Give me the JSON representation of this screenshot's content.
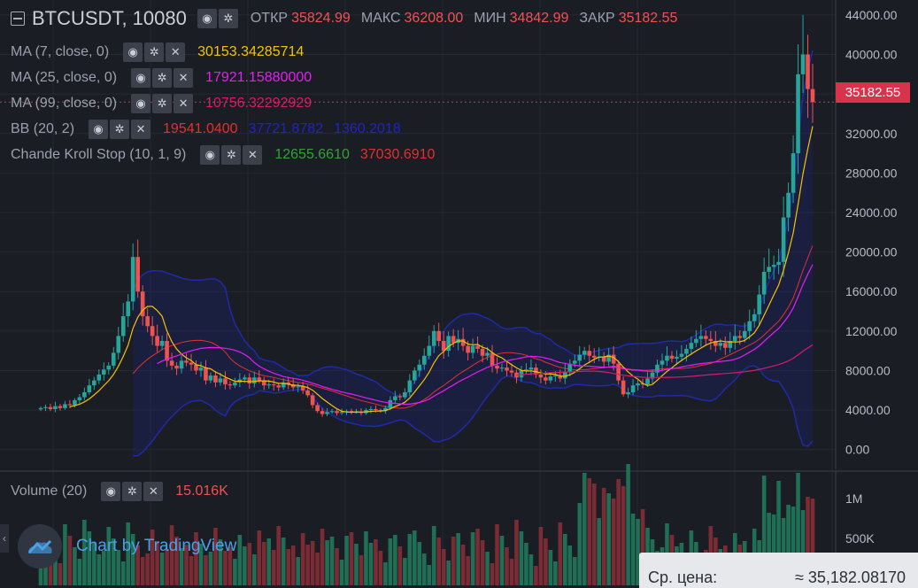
{
  "header": {
    "symbol": "BTCUSDT, 10080",
    "ohlc": [
      {
        "label": "ОТКР",
        "value": "35824.99"
      },
      {
        "label": "МАКС",
        "value": "36208.00"
      },
      {
        "label": "МИН",
        "value": "34842.99"
      },
      {
        "label": "ЗАКР",
        "value": "35182.55"
      }
    ]
  },
  "indicators": [
    {
      "name": "MA (7, close, 0)",
      "values": [
        "30153.34285714"
      ],
      "colors": [
        "#f2c200"
      ]
    },
    {
      "name": "MA (25, close, 0)",
      "values": [
        "17921.15880000"
      ],
      "colors": [
        "#e61df2"
      ]
    },
    {
      "name": "MA (99, close, 0)",
      "values": [
        "10756.32292929"
      ],
      "colors": [
        "#d81b6a"
      ]
    },
    {
      "name": "BB (20, 2)",
      "values": [
        "19541.0400",
        "37721.8782",
        "1360.2018"
      ],
      "colors": [
        "#e03030",
        "#2222c8",
        "#2222c8"
      ]
    },
    {
      "name": "Chande Kroll Stop (10, 1, 9)",
      "values": [
        "12655.6610",
        "37030.6910"
      ],
      "colors": [
        "#33a03a",
        "#e03030"
      ]
    }
  ],
  "price_axis": {
    "labels": [
      "44000.00",
      "40000.00",
      "36000.00",
      "32000.00",
      "28000.00",
      "24000.00",
      "20000.00",
      "16000.00",
      "12000.00",
      "8000.00",
      "4000.00",
      "0.00"
    ],
    "current": "35182.55"
  },
  "volume": {
    "name": "Volume (20)",
    "value": "15.016K",
    "axis_labels": [
      "1M",
      "500K"
    ]
  },
  "credit": "Chart by TradingView",
  "tooltip": {
    "label": "Ср. цена:",
    "value": "≈ 35,182.08170"
  },
  "colors": {
    "up": "#26a69a",
    "down": "#ef5350",
    "background": "#1b1d25"
  },
  "chart_data": {
    "type": "candlestick",
    "title": "BTCUSDT, 10080",
    "ylim": [
      -2000,
      44800
    ],
    "closes": [
      4200,
      4300,
      4100,
      4400,
      4200,
      4600,
      4500,
      5000,
      5300,
      5800,
      6500,
      7000,
      7600,
      8100,
      8500,
      9800,
      11500,
      13500,
      15000,
      19500,
      16000,
      13500,
      12500,
      11500,
      10500,
      11000,
      9000,
      8500,
      8200,
      9000,
      8800,
      8600,
      8000,
      8300,
      7000,
      7500,
      6800,
      7200,
      6600,
      6500,
      6800,
      7100,
      7300,
      6700,
      7300,
      7000,
      6500,
      6600,
      6500,
      6300,
      6800,
      6600,
      6300,
      6400,
      6000,
      5500,
      4500,
      3900,
      3600,
      3800,
      3900,
      3700,
      3800,
      3900,
      3800,
      3800,
      3700,
      4000,
      4100,
      4000,
      3900,
      4200,
      5000,
      5400,
      5300,
      5800,
      7000,
      8000,
      8600,
      9500,
      10500,
      12000,
      11000,
      10000,
      11500,
      10800,
      11200,
      10500,
      9800,
      10500,
      10200,
      9500,
      9800,
      8500,
      8200,
      8300,
      8000,
      7800,
      7300,
      8000,
      8100,
      8300,
      7600,
      7300,
      7000,
      7400,
      7500,
      7200,
      7900,
      8700,
      9000,
      9600,
      10000,
      9500,
      9300,
      9400,
      8900,
      9600,
      8700,
      7000,
      5600,
      5800,
      6500,
      6700,
      6600,
      7200,
      7800,
      8600,
      9000,
      9500,
      9200,
      9400,
      9700,
      10200,
      10800,
      11200,
      11500,
      11200,
      11000,
      10500,
      10800,
      10300,
      11000,
      11500,
      11300,
      12000,
      13000,
      13700,
      15700,
      18000,
      18500,
      18700,
      19000,
      23500,
      26000,
      30000,
      38000,
      40000,
      36500,
      35182
    ],
    "moving_averages": [
      {
        "name": "MA (7, close, 0)",
        "last": 30153.34
      },
      {
        "name": "MA (25, close, 0)",
        "last": 17921.16
      },
      {
        "name": "MA (99, close, 0)",
        "last": 10756.32
      }
    ]
  }
}
